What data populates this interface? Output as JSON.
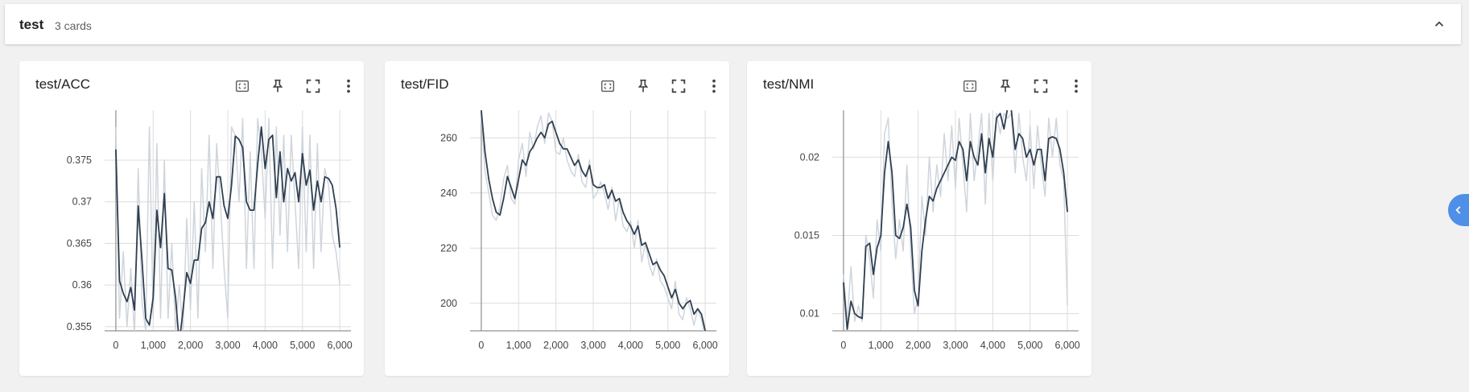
{
  "group": {
    "title": "test",
    "count_label": "3 cards",
    "collapse_icon": "chevron-up-icon"
  },
  "card_tools": [
    "fit-to-data-icon",
    "pin-icon",
    "fullscreen-icon",
    "more-vert-icon"
  ],
  "colors": {
    "smoothed": "#2f3f50",
    "raw": "#cfd5dc",
    "grid": "#dcdcdc",
    "axis": "#777777",
    "side_tab": "#4f8fe8"
  },
  "chart_data": [
    {
      "type": "line",
      "title": "test/ACC",
      "xlim": [
        -300,
        6300
      ],
      "ylim": [
        0.3545,
        0.381
      ],
      "xticks": [
        0,
        1000,
        2000,
        3000,
        4000,
        5000,
        6000
      ],
      "xtick_labels": [
        "0",
        "1,000",
        "2,000",
        "3,000",
        "4,000",
        "5,000",
        "6,000"
      ],
      "yticks": [
        0.355,
        0.36,
        0.365,
        0.37,
        0.375
      ],
      "ytick_labels": [
        "0.355",
        "0.36",
        "0.365",
        "0.37",
        "0.375"
      ],
      "series": [
        {
          "role": "smoothed",
          "x": [
            0,
            100,
            200,
            300,
            400,
            500,
            600,
            700,
            800,
            900,
            1000,
            1100,
            1200,
            1300,
            1400,
            1500,
            1600,
            1700,
            1800,
            1900,
            2000,
            2100,
            2200,
            2300,
            2400,
            2500,
            2600,
            2700,
            2800,
            2900,
            3000,
            3100,
            3200,
            3300,
            3400,
            3500,
            3600,
            3700,
            3800,
            3900,
            4000,
            4100,
            4200,
            4300,
            4400,
            4500,
            4600,
            4700,
            4800,
            4900,
            5000,
            5100,
            5200,
            5300,
            5400,
            5500,
            5600,
            5700,
            5800,
            5900,
            6000
          ],
          "y": [
            0.3763,
            0.3605,
            0.359,
            0.358,
            0.3597,
            0.357,
            0.3695,
            0.363,
            0.356,
            0.3552,
            0.3585,
            0.369,
            0.3645,
            0.371,
            0.362,
            0.3618,
            0.3585,
            0.353,
            0.357,
            0.3615,
            0.3602,
            0.363,
            0.363,
            0.3668,
            0.3675,
            0.37,
            0.368,
            0.373,
            0.373,
            0.3695,
            0.368,
            0.372,
            0.3779,
            0.3775,
            0.3765,
            0.37,
            0.369,
            0.369,
            0.3745,
            0.379,
            0.374,
            0.3775,
            0.378,
            0.3705,
            0.376,
            0.37,
            0.374,
            0.3725,
            0.3735,
            0.37,
            0.3758,
            0.372,
            0.3738,
            0.369,
            0.3725,
            0.37,
            0.373,
            0.3728,
            0.372,
            0.3692,
            0.3645
          ]
        },
        {
          "role": "raw",
          "x": [
            0,
            100,
            200,
            300,
            400,
            500,
            600,
            700,
            800,
            900,
            1000,
            1100,
            1200,
            1300,
            1400,
            1500,
            1600,
            1700,
            1800,
            1900,
            2000,
            2100,
            2200,
            2300,
            2400,
            2500,
            2600,
            2700,
            2800,
            2900,
            3000,
            3100,
            3200,
            3300,
            3400,
            3500,
            3600,
            3700,
            3800,
            3900,
            4000,
            4100,
            4200,
            4300,
            4400,
            4500,
            4600,
            4700,
            4800,
            4900,
            5000,
            5100,
            5200,
            5300,
            5400,
            5500,
            5600,
            5700,
            5800,
            5900,
            6000
          ],
          "y": [
            0.379,
            0.356,
            0.364,
            0.355,
            0.362,
            0.354,
            0.374,
            0.358,
            0.3545,
            0.379,
            0.356,
            0.377,
            0.356,
            0.375,
            0.356,
            0.365,
            0.3545,
            0.36,
            0.3545,
            0.368,
            0.357,
            0.37,
            0.356,
            0.374,
            0.364,
            0.378,
            0.362,
            0.377,
            0.37,
            0.362,
            0.356,
            0.379,
            0.378,
            0.37,
            0.38,
            0.362,
            0.376,
            0.362,
            0.38,
            0.376,
            0.368,
            0.38,
            0.362,
            0.379,
            0.366,
            0.378,
            0.364,
            0.378,
            0.37,
            0.362,
            0.379,
            0.364,
            0.378,
            0.362,
            0.377,
            0.364,
            0.374,
            0.372,
            0.366,
            0.364,
            0.36
          ]
        }
      ]
    },
    {
      "type": "line",
      "title": "test/FID",
      "xlim": [
        -300,
        6300
      ],
      "ylim": [
        190,
        270
      ],
      "xticks": [
        0,
        1000,
        2000,
        3000,
        4000,
        5000,
        6000
      ],
      "xtick_labels": [
        "0",
        "1,000",
        "2,000",
        "3,000",
        "4,000",
        "5,000",
        "6,000"
      ],
      "yticks": [
        200,
        220,
        240,
        260
      ],
      "ytick_labels": [
        "200",
        "220",
        "240",
        "260"
      ],
      "series": [
        {
          "role": "smoothed",
          "x": [
            0,
            100,
            200,
            300,
            400,
            500,
            600,
            700,
            800,
            900,
            1000,
            1100,
            1200,
            1300,
            1400,
            1500,
            1600,
            1700,
            1800,
            1900,
            2000,
            2100,
            2200,
            2300,
            2400,
            2500,
            2600,
            2700,
            2800,
            2900,
            3000,
            3100,
            3200,
            3300,
            3400,
            3500,
            3600,
            3700,
            3800,
            3900,
            4000,
            4100,
            4200,
            4300,
            4400,
            4500,
            4600,
            4700,
            4800,
            4900,
            5000,
            5100,
            5200,
            5300,
            5400,
            5500,
            5600,
            5700,
            5800,
            5900,
            6000
          ],
          "y": [
            270,
            255,
            245,
            238,
            233,
            232,
            238,
            246,
            242,
            238,
            245,
            252,
            250,
            255,
            257,
            260,
            262,
            260,
            265,
            266,
            262,
            258,
            256,
            256,
            253,
            250,
            252,
            248,
            246,
            250,
            243,
            242,
            242,
            243,
            238,
            241,
            237,
            238,
            233,
            230,
            228,
            225,
            228,
            221,
            222,
            218,
            214,
            215,
            212,
            210,
            206,
            202,
            205,
            200,
            198,
            200,
            201,
            196,
            198,
            196,
            190
          ]
        },
        {
          "role": "raw",
          "x": [
            0,
            100,
            200,
            300,
            400,
            500,
            600,
            700,
            800,
            900,
            1000,
            1100,
            1200,
            1300,
            1400,
            1500,
            1600,
            1700,
            1800,
            1900,
            2000,
            2100,
            2200,
            2300,
            2400,
            2500,
            2600,
            2700,
            2800,
            2900,
            3000,
            3100,
            3200,
            3300,
            3400,
            3500,
            3600,
            3700,
            3800,
            3900,
            4000,
            4100,
            4200,
            4300,
            4400,
            4500,
            4600,
            4700,
            4800,
            4900,
            5000,
            5100,
            5200,
            5300,
            5400,
            5500,
            5600,
            5700,
            5800,
            5900,
            6000
          ],
          "y": [
            268,
            248,
            240,
            232,
            230,
            235,
            245,
            250,
            238,
            236,
            252,
            258,
            246,
            262,
            256,
            264,
            268,
            258,
            269,
            266,
            255,
            254,
            260,
            252,
            248,
            246,
            254,
            244,
            242,
            252,
            238,
            240,
            244,
            240,
            234,
            242,
            230,
            238,
            228,
            226,
            230,
            220,
            230,
            215,
            222,
            214,
            210,
            216,
            208,
            206,
            202,
            198,
            208,
            196,
            194,
            202,
            198,
            192,
            198,
            194,
            188
          ]
        }
      ]
    },
    {
      "type": "line",
      "title": "test/NMI",
      "xlim": [
        -300,
        6300
      ],
      "ylim": [
        0.0089,
        0.023
      ],
      "xticks": [
        0,
        1000,
        2000,
        3000,
        4000,
        5000,
        6000
      ],
      "xtick_labels": [
        "0",
        "1,000",
        "2,000",
        "3,000",
        "4,000",
        "5,000",
        "6,000"
      ],
      "yticks": [
        0.01,
        0.015,
        0.02
      ],
      "ytick_labels": [
        "0.01",
        "0.015",
        "0.02"
      ],
      "series": [
        {
          "role": "smoothed",
          "x": [
            0,
            100,
            200,
            300,
            400,
            500,
            600,
            700,
            800,
            900,
            1000,
            1100,
            1200,
            1300,
            1400,
            1500,
            1600,
            1700,
            1800,
            1900,
            2000,
            2100,
            2200,
            2300,
            2400,
            2500,
            2600,
            2700,
            2800,
            2900,
            3000,
            3100,
            3200,
            3300,
            3400,
            3500,
            3600,
            3700,
            3800,
            3900,
            4000,
            4100,
            4200,
            4300,
            4400,
            4500,
            4600,
            4700,
            4800,
            4900,
            5000,
            5100,
            5200,
            5300,
            5400,
            5500,
            5600,
            5700,
            5800,
            5900,
            6000
          ],
          "y": [
            0.012,
            0.009,
            0.0108,
            0.01,
            0.0098,
            0.0097,
            0.0143,
            0.0145,
            0.0125,
            0.0142,
            0.015,
            0.019,
            0.021,
            0.019,
            0.015,
            0.0148,
            0.0155,
            0.017,
            0.0155,
            0.0115,
            0.0105,
            0.014,
            0.016,
            0.0175,
            0.0172,
            0.018,
            0.0185,
            0.019,
            0.0195,
            0.02,
            0.0198,
            0.021,
            0.0205,
            0.0185,
            0.021,
            0.02,
            0.0195,
            0.0215,
            0.019,
            0.0212,
            0.02,
            0.0225,
            0.0228,
            0.0218,
            0.0232,
            0.023,
            0.0205,
            0.0215,
            0.0212,
            0.02,
            0.0205,
            0.0195,
            0.0205,
            0.0205,
            0.0185,
            0.0212,
            0.0213,
            0.0212,
            0.0205,
            0.019,
            0.0165
          ]
        },
        {
          "role": "raw",
          "x": [
            0,
            100,
            200,
            300,
            400,
            500,
            600,
            700,
            800,
            900,
            1000,
            1100,
            1200,
            1300,
            1400,
            1500,
            1600,
            1700,
            1800,
            1900,
            2000,
            2100,
            2200,
            2300,
            2400,
            2500,
            2600,
            2700,
            2800,
            2900,
            3000,
            3100,
            3200,
            3300,
            3400,
            3500,
            3600,
            3700,
            3800,
            3900,
            4000,
            4100,
            4200,
            4300,
            4400,
            4500,
            4600,
            4700,
            4800,
            4900,
            5000,
            5100,
            5200,
            5300,
            5400,
            5500,
            5600,
            5700,
            5800,
            5900,
            6000
          ],
          "y": [
            0.0125,
            0.0095,
            0.013,
            0.0095,
            0.0105,
            0.0095,
            0.015,
            0.0135,
            0.011,
            0.016,
            0.014,
            0.0215,
            0.0225,
            0.017,
            0.0135,
            0.016,
            0.014,
            0.0195,
            0.014,
            0.01,
            0.011,
            0.0175,
            0.015,
            0.02,
            0.0165,
            0.0195,
            0.0175,
            0.0215,
            0.0185,
            0.022,
            0.018,
            0.0225,
            0.0195,
            0.0165,
            0.0228,
            0.0185,
            0.0205,
            0.0228,
            0.017,
            0.0228,
            0.0185,
            0.0228,
            0.0215,
            0.0228,
            0.0225,
            0.0228,
            0.019,
            0.0228,
            0.02,
            0.0185,
            0.022,
            0.018,
            0.022,
            0.0195,
            0.0175,
            0.0225,
            0.02,
            0.0225,
            0.0195,
            0.0185,
            0.0105
          ]
        }
      ]
    }
  ]
}
